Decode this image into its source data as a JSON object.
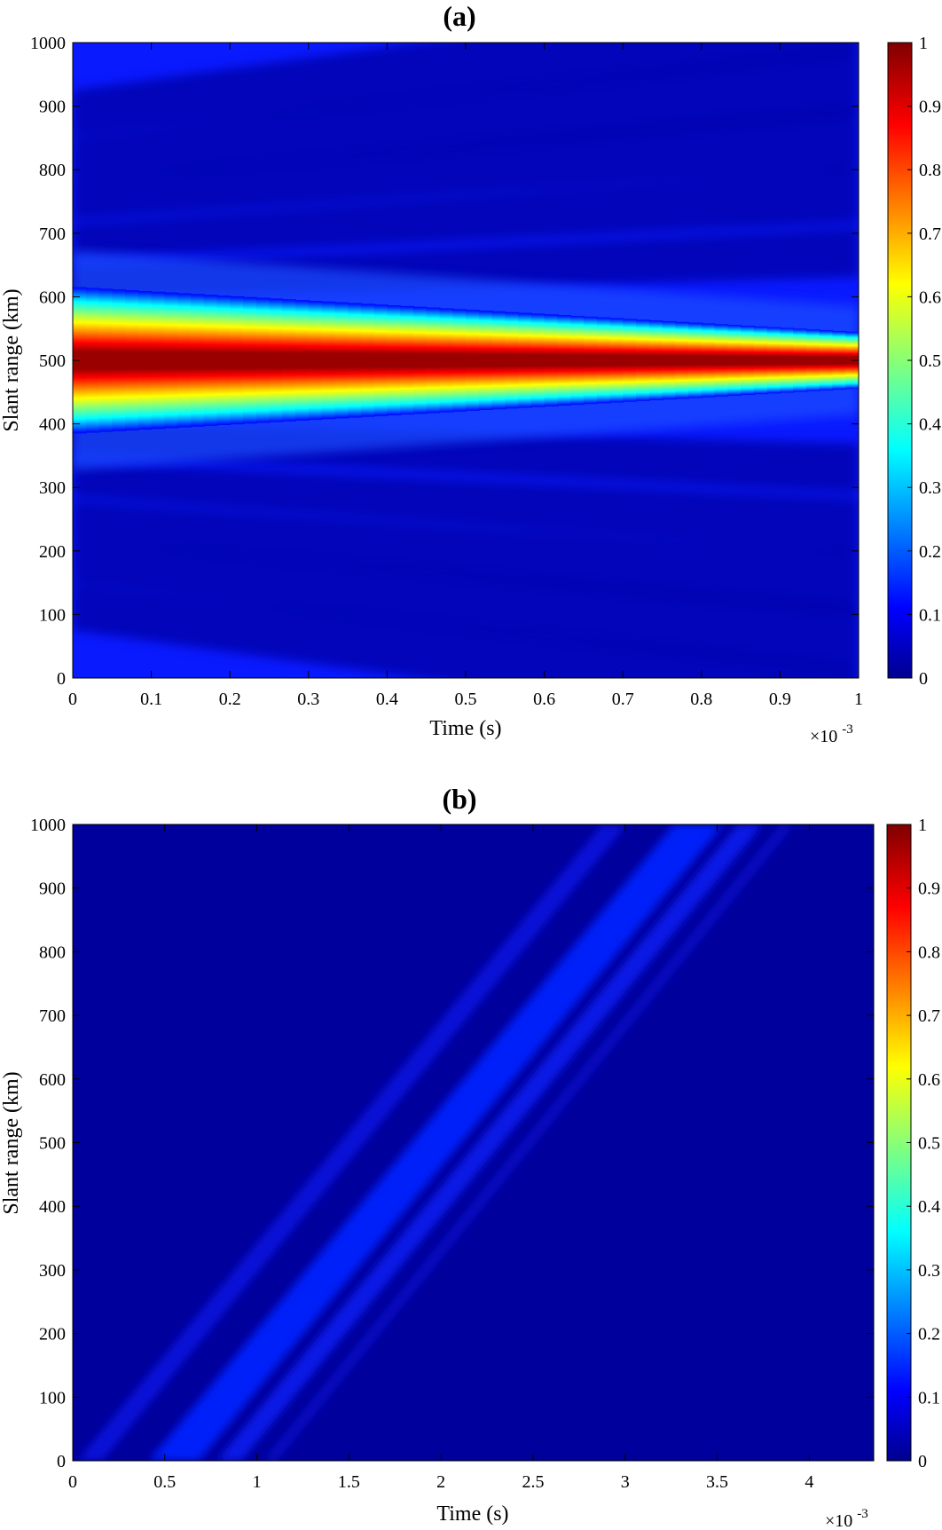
{
  "chart_data": [
    {
      "type": "heatmap",
      "title": "(a)",
      "xlabel": "Time (s)",
      "ylabel": "Slant range (km)",
      "x_multiplier": "×10",
      "x_multiplier_exp": "-3",
      "xlim": [
        0,
        1
      ],
      "ylim": [
        0,
        1000
      ],
      "xticks": [
        "0",
        "0.1",
        "0.2",
        "0.3",
        "0.4",
        "0.5",
        "0.6",
        "0.7",
        "0.8",
        "0.9",
        "1"
      ],
      "yticks": [
        "0",
        "100",
        "200",
        "300",
        "400",
        "500",
        "600",
        "700",
        "800",
        "900",
        "1000"
      ],
      "colorbar_ticks": [
        "0",
        "0.1",
        "0.2",
        "0.3",
        "0.4",
        "0.5",
        "0.6",
        "0.7",
        "0.8",
        "0.9",
        "1"
      ],
      "colormap": "jet",
      "clim": [
        0,
        1
      ],
      "pattern": "horizontal main lobe centred at 500 km, full width about 230 km at t=0 narrowing to about 90 km at t=1×10^-3 s; weak sidelobes fanning outward",
      "main_lobe": {
        "center_km": 500,
        "halfwidth_start_km": 115,
        "halfwidth_end_km": 45,
        "peak_value": 1
      }
    },
    {
      "type": "heatmap",
      "title": "(b)",
      "xlabel": "Time (s)",
      "ylabel": "Slant range (km)",
      "x_multiplier": "×10",
      "x_multiplier_exp": "-3",
      "xlim": [
        0,
        4.35
      ],
      "ylim": [
        0,
        1000
      ],
      "xticks": [
        "0",
        "0.5",
        "1",
        "1.5",
        "2",
        "2.5",
        "3",
        "3.5",
        "4"
      ],
      "yticks": [
        "0",
        "100",
        "200",
        "300",
        "400",
        "500",
        "600",
        "700",
        "800",
        "900",
        "1000"
      ],
      "colorbar_ticks": [
        "0",
        "0.1",
        "0.2",
        "0.3",
        "0.4",
        "0.5",
        "0.6",
        "0.7",
        "0.8",
        "0.9",
        "1"
      ],
      "colormap": "jet",
      "clim": [
        0,
        1
      ],
      "pattern": "low-level diagonal band rising from lower left to upper right",
      "band": {
        "start_time_ms": 0.55,
        "end_time_ms": 3.4,
        "range_start_km": 0,
        "range_end_km": 1000,
        "peak_value": 0.12
      }
    }
  ],
  "colors": {
    "jet_stops": [
      "#00008f",
      "#0000ff",
      "#00ffff",
      "#ffff00",
      "#ff0000",
      "#800000"
    ],
    "background": "#00009c"
  }
}
